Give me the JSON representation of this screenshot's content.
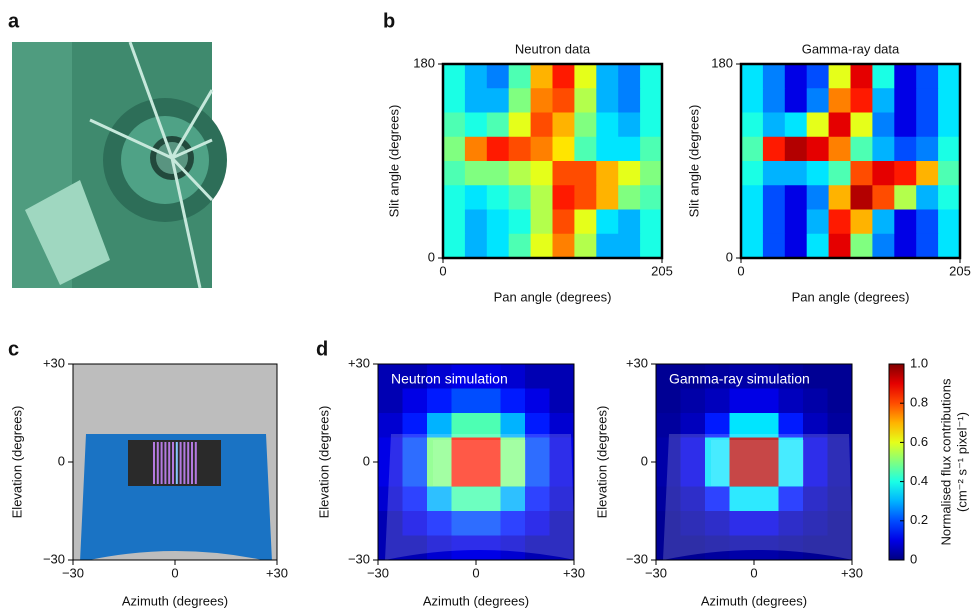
{
  "panel_labels": [
    "a",
    "b",
    "c",
    "d"
  ],
  "chart_data": [
    {
      "type": "heatmap",
      "title": "Neutron data",
      "xlabel": "Pan angle (degrees)",
      "ylabel": "Slit angle (degrees)",
      "xlim": [
        0,
        205
      ],
      "ylim": [
        0,
        180
      ],
      "xticks": [
        0,
        205
      ],
      "yticks": [
        0,
        180
      ],
      "z": [
        [
          0.4,
          0.3,
          0.25,
          0.45,
          0.7,
          0.85,
          0.6,
          0.3,
          0.25,
          0.4
        ],
        [
          0.4,
          0.3,
          0.3,
          0.5,
          0.75,
          0.8,
          0.55,
          0.3,
          0.25,
          0.4
        ],
        [
          0.45,
          0.4,
          0.45,
          0.6,
          0.8,
          0.7,
          0.5,
          0.35,
          0.3,
          0.4
        ],
        [
          0.5,
          0.75,
          0.85,
          0.8,
          0.75,
          0.65,
          0.45,
          0.35,
          0.35,
          0.45
        ],
        [
          0.45,
          0.5,
          0.5,
          0.55,
          0.6,
          0.8,
          0.8,
          0.7,
          0.6,
          0.5
        ],
        [
          0.4,
          0.35,
          0.4,
          0.45,
          0.55,
          0.85,
          0.8,
          0.7,
          0.5,
          0.45
        ],
        [
          0.4,
          0.3,
          0.35,
          0.4,
          0.55,
          0.8,
          0.6,
          0.35,
          0.3,
          0.4
        ],
        [
          0.4,
          0.3,
          0.35,
          0.45,
          0.6,
          0.75,
          0.55,
          0.3,
          0.3,
          0.4
        ]
      ]
    },
    {
      "type": "heatmap",
      "title": "Gamma-ray data",
      "xlabel": "Pan angle (degrees)",
      "ylabel": "Slit angle (degrees)",
      "xlim": [
        0,
        205
      ],
      "ylim": [
        0,
        180
      ],
      "xticks": [
        0,
        205
      ],
      "yticks": [
        0,
        180
      ],
      "z": [
        [
          0.35,
          0.25,
          0.1,
          0.2,
          0.6,
          0.9,
          0.4,
          0.1,
          0.2,
          0.35
        ],
        [
          0.35,
          0.25,
          0.1,
          0.25,
          0.75,
          0.85,
          0.3,
          0.1,
          0.2,
          0.35
        ],
        [
          0.4,
          0.3,
          0.35,
          0.6,
          0.9,
          0.6,
          0.25,
          0.1,
          0.2,
          0.35
        ],
        [
          0.45,
          0.85,
          0.95,
          0.9,
          0.75,
          0.45,
          0.3,
          0.2,
          0.25,
          0.4
        ],
        [
          0.4,
          0.3,
          0.3,
          0.35,
          0.45,
          0.8,
          0.9,
          0.85,
          0.7,
          0.45
        ],
        [
          0.35,
          0.2,
          0.1,
          0.25,
          0.7,
          0.95,
          0.8,
          0.55,
          0.3,
          0.4
        ],
        [
          0.35,
          0.2,
          0.1,
          0.3,
          0.85,
          0.7,
          0.3,
          0.1,
          0.2,
          0.35
        ],
        [
          0.35,
          0.2,
          0.1,
          0.35,
          0.9,
          0.5,
          0.25,
          0.1,
          0.2,
          0.35
        ]
      ]
    },
    {
      "type": "schematic",
      "xlabel": "Azimuth (degrees)",
      "ylabel": "Elevation (degrees)",
      "xlim": [
        -30,
        30
      ],
      "ylim": [
        -30,
        30
      ],
      "xticks": [
        {
          "value": -30,
          "label": "−30"
        },
        0,
        {
          "value": 30,
          "label": "+30"
        }
      ],
      "yticks": [
        {
          "value": -30,
          "label": "−30"
        },
        0,
        {
          "value": 30,
          "label": "+30"
        }
      ]
    },
    {
      "type": "heatmap",
      "title": "Neutron simulation",
      "xlabel": "Azimuth (degrees)",
      "ylabel": "Elevation (degrees)",
      "xlim": [
        -30,
        30
      ],
      "ylim": [
        -30,
        30
      ],
      "xticks": [
        {
          "value": -30,
          "label": "−30"
        },
        0,
        {
          "value": 30,
          "label": "+30"
        }
      ],
      "yticks": [
        {
          "value": -30,
          "label": "−30"
        },
        0,
        {
          "value": 30,
          "label": "+30"
        }
      ],
      "z": [
        [
          0.05,
          0.05,
          0.08,
          0.1,
          0.1,
          0.08,
          0.05,
          0.05
        ],
        [
          0.05,
          0.1,
          0.15,
          0.2,
          0.2,
          0.15,
          0.1,
          0.05
        ],
        [
          0.08,
          0.15,
          0.3,
          0.45,
          0.45,
          0.3,
          0.15,
          0.08
        ],
        [
          0.1,
          0.2,
          0.5,
          0.85,
          0.85,
          0.5,
          0.2,
          0.1
        ],
        [
          0.1,
          0.2,
          0.5,
          0.85,
          0.85,
          0.5,
          0.2,
          0.1
        ],
        [
          0.08,
          0.15,
          0.3,
          0.45,
          0.45,
          0.3,
          0.15,
          0.08
        ],
        [
          0.05,
          0.1,
          0.15,
          0.2,
          0.2,
          0.15,
          0.1,
          0.05
        ],
        [
          0.05,
          0.05,
          0.08,
          0.1,
          0.1,
          0.08,
          0.05,
          0.05
        ]
      ]
    },
    {
      "type": "heatmap",
      "title": "Gamma-ray simulation",
      "xlabel": "Azimuth (degrees)",
      "ylabel": "Elevation (degrees)",
      "xlim": [
        -30,
        30
      ],
      "ylim": [
        -30,
        30
      ],
      "xticks": [
        {
          "value": -30,
          "label": "−30"
        },
        0,
        {
          "value": 30,
          "label": "+30"
        }
      ],
      "yticks": [
        {
          "value": -30,
          "label": "−30"
        },
        0,
        {
          "value": 30,
          "label": "+30"
        }
      ],
      "z": [
        [
          0.02,
          0.02,
          0.03,
          0.04,
          0.04,
          0.03,
          0.02,
          0.02
        ],
        [
          0.02,
          0.04,
          0.06,
          0.1,
          0.1,
          0.06,
          0.04,
          0.02
        ],
        [
          0.03,
          0.06,
          0.15,
          0.35,
          0.35,
          0.15,
          0.06,
          0.03
        ],
        [
          0.04,
          0.1,
          0.35,
          0.95,
          0.95,
          0.35,
          0.1,
          0.04
        ],
        [
          0.04,
          0.1,
          0.35,
          0.95,
          0.95,
          0.35,
          0.1,
          0.04
        ],
        [
          0.03,
          0.06,
          0.15,
          0.35,
          0.35,
          0.15,
          0.06,
          0.03
        ],
        [
          0.02,
          0.04,
          0.06,
          0.1,
          0.1,
          0.06,
          0.04,
          0.02
        ],
        [
          0.02,
          0.02,
          0.03,
          0.04,
          0.04,
          0.03,
          0.02,
          0.02
        ]
      ],
      "colorbar": {
        "label": "Normalised flux contributions",
        "units": "(cm⁻² s⁻¹ pixel⁻¹)",
        "lim": [
          0,
          1
        ],
        "ticks": [
          0,
          0.2,
          0.4,
          0.6,
          0.8,
          {
            "value": 1,
            "label": "1.0"
          }
        ]
      }
    }
  ]
}
